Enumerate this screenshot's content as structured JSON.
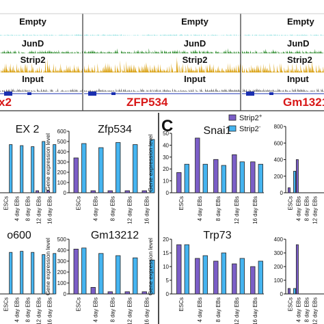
{
  "figure": {
    "panel_letter": "C",
    "tracks": {
      "labels": [
        "Empty",
        "JunD",
        "Strip2",
        "Input"
      ],
      "genes": [
        "x2",
        "ZFP534",
        "Gm1321"
      ],
      "colors": {
        "Empty": "#5ed3d3",
        "JunD": "#2a8a2a",
        "Strip2": "#d9a010",
        "Input": "#6b6b6b",
        "gene_model": "#1a2fb0"
      }
    },
    "legend": {
      "strip2_plus": "Strip2",
      "strip2_plus_sup": "+",
      "strip2_minus": "Strip2",
      "strip2_minus_sup": "-"
    },
    "y_axis_label": "Gene expression level",
    "x_categories": [
      "ESCs",
      "4 day EBs",
      "8 day EBs",
      "12 day EBs",
      "16 day EBs"
    ]
  },
  "colors": {
    "strip2_plus": "#7b5ec7",
    "strip2_minus": "#45b4f0",
    "panel_divider": "#111111",
    "track_divider": "#333333"
  },
  "chart_data": [
    {
      "type": "bar",
      "title": "EX 2",
      "categories": [
        "ESCs",
        "4 day EBs",
        "8 day EBs",
        "12 day EBs",
        "16 day EBs"
      ],
      "series": [
        {
          "name": "Strip2+",
          "values": [
            0,
            0,
            0,
            20,
            20
          ]
        },
        {
          "name": "Strip2-",
          "values": [
            470,
            460,
            450,
            500,
            470
          ]
        }
      ],
      "yticks": [],
      "ylim": [
        0,
        600
      ],
      "cropped": "left"
    },
    {
      "type": "bar",
      "title": "Zfp534",
      "categories": [
        "ESCs",
        "4 day EBs",
        "8 day EBs",
        "12 day EBs",
        "16 day EBs"
      ],
      "series": [
        {
          "name": "Strip2+",
          "values": [
            340,
            20,
            20,
            20,
            20
          ]
        },
        {
          "name": "Strip2-",
          "values": [
            480,
            440,
            490,
            470,
            520
          ]
        }
      ],
      "yticks": [
        0,
        100,
        200,
        300,
        400,
        500,
        600
      ],
      "ylim": [
        0,
        600
      ],
      "ylabel": "Gene expression level"
    },
    {
      "type": "bar",
      "title": "o600",
      "categories": [
        "ESCs",
        "4 day EBs",
        "8 day EBs",
        "12 day EBs",
        "16 day EBs"
      ],
      "series": [
        {
          "name": "Strip2+",
          "values": [
            0,
            0,
            0,
            0,
            0
          ]
        },
        {
          "name": "Strip2-",
          "values": [
            380,
            390,
            380,
            360,
            370
          ]
        }
      ],
      "yticks": [],
      "ylim": [
        0,
        500
      ],
      "cropped": "left"
    },
    {
      "type": "bar",
      "title": "Gm13212",
      "categories": [
        "ESCs",
        "4 day EBs",
        "8 day EBs",
        "12 day EBs",
        "16 day EBs"
      ],
      "series": [
        {
          "name": "Strip2+",
          "values": [
            410,
            60,
            20,
            20,
            20
          ]
        },
        {
          "name": "Strip2-",
          "values": [
            420,
            370,
            350,
            330,
            310
          ]
        }
      ],
      "yticks": [
        0,
        100,
        200,
        300,
        400,
        500
      ],
      "ylim": [
        0,
        500
      ],
      "ylabel": "Gene expression level"
    },
    {
      "type": "bar",
      "title": "Snai1",
      "categories": [
        "ESCs",
        "4 day EBs",
        "8 day EBs",
        "12 day EBs",
        "16 day EBs"
      ],
      "series": [
        {
          "name": "Strip2+",
          "values": [
            17,
            46,
            28,
            32,
            26
          ]
        },
        {
          "name": "Strip2-",
          "values": [
            24,
            24,
            23,
            26,
            24
          ]
        }
      ],
      "yticks": [
        0,
        10,
        20,
        30,
        40,
        50
      ],
      "ylim": [
        0,
        50
      ],
      "ylabel": "Gene expression level"
    },
    {
      "type": "bar",
      "title": "",
      "categories": [
        "ESCs",
        "4 day EBs",
        "8 day EBs",
        "12 day EBs",
        "16 day EBs"
      ],
      "series": [
        {
          "name": "Strip2+",
          "values": [
            60,
            400,
            0,
            0,
            0
          ]
        },
        {
          "name": "Strip2-",
          "values": [
            260,
            0,
            0,
            0,
            0
          ]
        }
      ],
      "yticks": [
        0,
        200,
        400,
        600,
        800
      ],
      "ylim": [
        0,
        800
      ],
      "cropped": "right"
    },
    {
      "type": "bar",
      "title": "Trp73",
      "categories": [
        "ESCs",
        "4 day EBs",
        "8 day EBs",
        "12 day EBs",
        "16 day EBs"
      ],
      "series": [
        {
          "name": "Strip2+",
          "values": [
            18,
            13,
            12,
            11,
            10
          ]
        },
        {
          "name": "Strip2-",
          "values": [
            18,
            14,
            15,
            13,
            12
          ]
        }
      ],
      "yticks": [
        0,
        5,
        10,
        15,
        20
      ],
      "ylim": [
        0,
        20
      ],
      "ylabel": "Gene expression level"
    },
    {
      "type": "bar",
      "title": "",
      "categories": [
        "ESCs",
        "4 day EBs",
        "8 day EBs",
        "12 day EBs",
        "16 day EBs"
      ],
      "series": [
        {
          "name": "Strip2+",
          "values": [
            40,
            360,
            0,
            0,
            0
          ]
        },
        {
          "name": "Strip2-",
          "values": [
            40,
            0,
            0,
            0,
            0
          ]
        }
      ],
      "yticks": [
        0,
        100,
        200,
        300,
        400
      ],
      "ylim": [
        0,
        400
      ],
      "cropped": "right"
    }
  ]
}
